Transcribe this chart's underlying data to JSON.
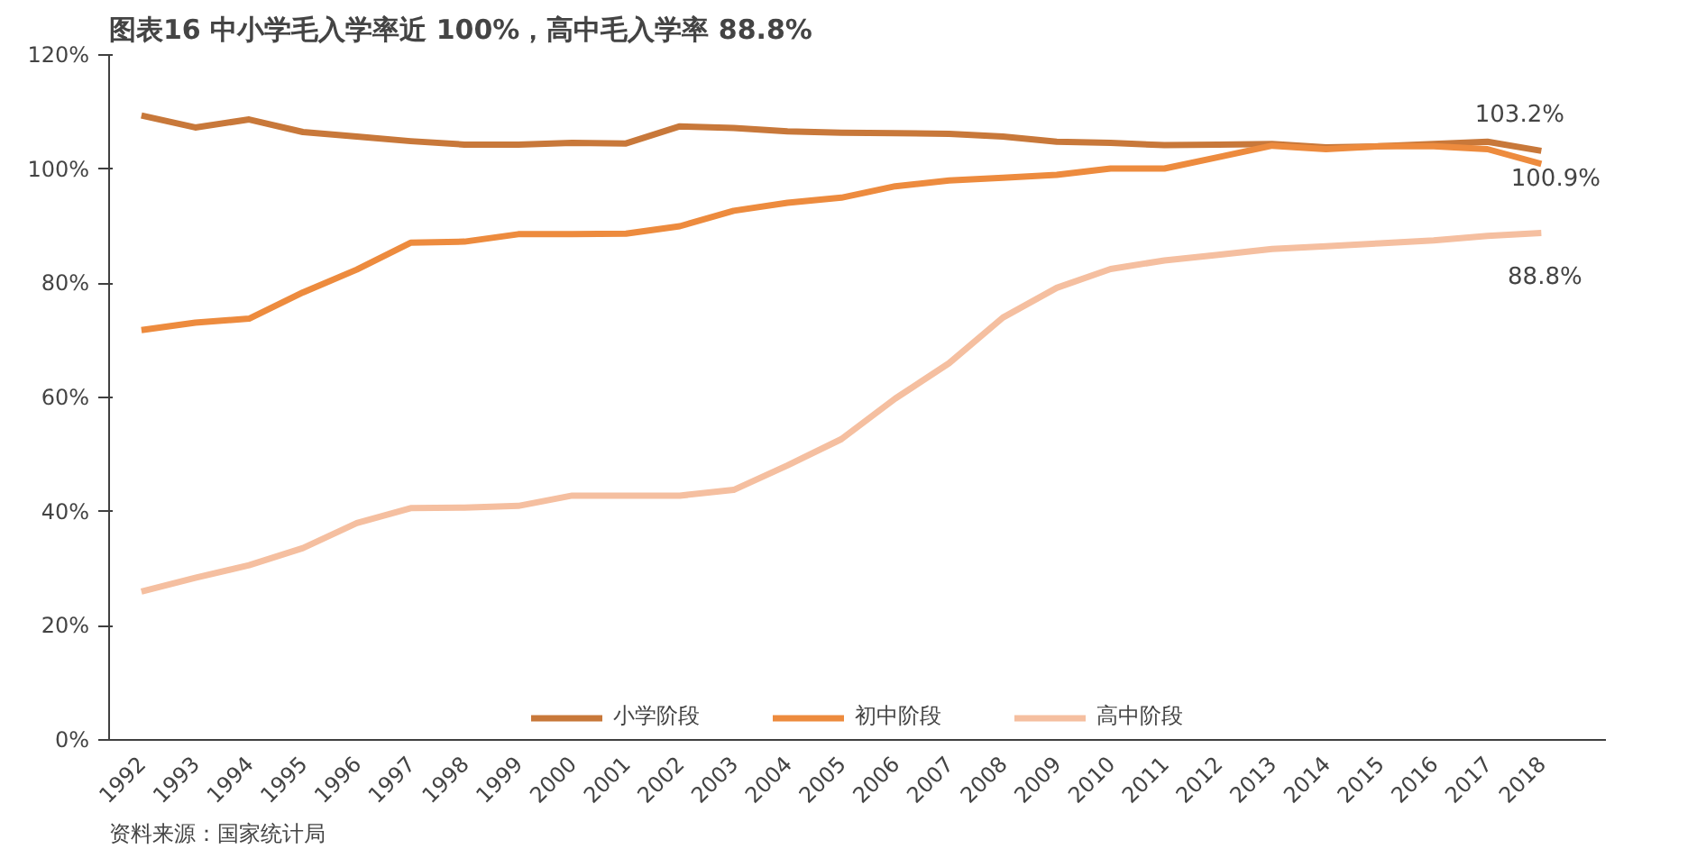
{
  "chart_data": {
    "type": "line",
    "title": "图表16 中小学毛入学率近 100%，高中毛入学率 88.8%",
    "categories": [
      "1992",
      "1993",
      "1994",
      "1995",
      "1996",
      "1997",
      "1998",
      "1999",
      "2000",
      "2001",
      "2002",
      "2003",
      "2004",
      "2005",
      "2006",
      "2007",
      "2008",
      "2009",
      "2010",
      "2011",
      "2012",
      "2013",
      "2014",
      "2015",
      "2016",
      "2017",
      "2018"
    ],
    "series": [
      {
        "name": "小学阶段",
        "color": "#c8783a",
        "values": [
          109.4,
          107.3,
          108.7,
          106.5,
          105.7,
          104.9,
          104.3,
          104.3,
          104.6,
          104.5,
          107.5,
          107.2,
          106.6,
          106.4,
          106.3,
          106.2,
          105.7,
          104.8,
          104.6,
          104.2,
          104.3,
          104.4,
          103.8,
          104.0,
          104.4,
          104.8,
          103.2
        ]
      },
      {
        "name": "初中阶段",
        "color": "#ed8b3e",
        "values": [
          71.8,
          73.1,
          73.8,
          78.4,
          82.4,
          87.1,
          87.3,
          88.6,
          88.6,
          88.7,
          90.0,
          92.7,
          94.1,
          95.0,
          97.0,
          98.0,
          98.5,
          99.0,
          100.1,
          100.1,
          102.1,
          104.1,
          103.5,
          104.0,
          104.0,
          103.5,
          100.9
        ]
      },
      {
        "name": "高中阶段",
        "color": "#f5bfa0",
        "values": [
          26.0,
          28.4,
          30.6,
          33.6,
          38.0,
          40.6,
          40.7,
          41.0,
          42.8,
          42.8,
          42.8,
          43.8,
          48.1,
          52.7,
          59.8,
          66.0,
          74.0,
          79.2,
          82.5,
          84.0,
          85.0,
          86.0,
          86.5,
          87.0,
          87.5,
          88.3,
          88.8
        ]
      }
    ],
    "ylim": [
      0,
      120
    ],
    "yticks": [
      {
        "value": 0,
        "label": "0%"
      },
      {
        "value": 20,
        "label": "20%"
      },
      {
        "value": 40,
        "label": "40%"
      },
      {
        "value": 60,
        "label": "60%"
      },
      {
        "value": 80,
        "label": "80%"
      },
      {
        "value": 100,
        "label": "100%"
      },
      {
        "value": 120,
        "label": "120%"
      }
    ],
    "annotations": [
      {
        "text": "103.2%",
        "x": "2018",
        "y": 103.2
      },
      {
        "text": "100.9%",
        "x": "2018",
        "y": 100.9
      },
      {
        "text": "88.8%",
        "x": "2018",
        "y": 88.8
      },
      "资料来源：国家统计局"
    ],
    "legend": "bottom",
    "grid": false,
    "marker": "none",
    "line_style": "solid"
  }
}
